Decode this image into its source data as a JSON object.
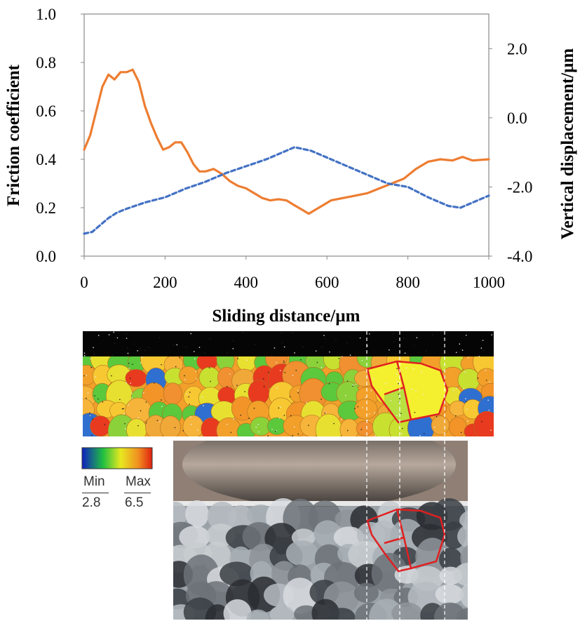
{
  "chart_data": {
    "type": "line",
    "xlabel": "Sliding distance/µm",
    "ylabel": "Friction coefficient",
    "y2label": "Vertical displacement/µm",
    "xlim": [
      0,
      1000
    ],
    "ylim": [
      0,
      1.0
    ],
    "y2lim": [
      -4.0,
      3.0
    ],
    "x_ticks": [
      "0",
      "200",
      "400",
      "600",
      "800",
      "1000"
    ],
    "y_ticks": [
      "0.0",
      "0.2",
      "0.4",
      "0.6",
      "0.8",
      "1.0"
    ],
    "y2_ticks": [
      "-4.0",
      "-2.0",
      "0.0",
      "2.0"
    ],
    "grid": false,
    "series": [
      {
        "axis": "left",
        "style": "solid",
        "color": "#ed7d31",
        "x": [
          0,
          15,
          30,
          45,
          60,
          75,
          90,
          105,
          120,
          135,
          150,
          165,
          180,
          195,
          210,
          225,
          240,
          255,
          270,
          285,
          300,
          320,
          340,
          360,
          380,
          400,
          420,
          440,
          460,
          480,
          500,
          520,
          540,
          555,
          570,
          590,
          610,
          640,
          670,
          700,
          730,
          760,
          790,
          820,
          850,
          880,
          910,
          935,
          960,
          1000
        ],
        "values": [
          0.44,
          0.5,
          0.6,
          0.7,
          0.75,
          0.73,
          0.76,
          0.76,
          0.77,
          0.72,
          0.62,
          0.55,
          0.49,
          0.44,
          0.45,
          0.47,
          0.47,
          0.43,
          0.38,
          0.35,
          0.35,
          0.36,
          0.34,
          0.31,
          0.29,
          0.28,
          0.26,
          0.24,
          0.23,
          0.235,
          0.23,
          0.21,
          0.19,
          0.175,
          0.19,
          0.21,
          0.23,
          0.24,
          0.25,
          0.26,
          0.28,
          0.3,
          0.32,
          0.36,
          0.39,
          0.4,
          0.395,
          0.41,
          0.395,
          0.4
        ]
      },
      {
        "axis": "right",
        "style": "dashed",
        "color": "#4472c4",
        "x": [
          0,
          20,
          40,
          60,
          80,
          100,
          150,
          200,
          250,
          300,
          350,
          400,
          450,
          500,
          520,
          540,
          560,
          600,
          650,
          700,
          750,
          800,
          850,
          900,
          930,
          950,
          980,
          1000
        ],
        "values": [
          -3.35,
          -3.3,
          -3.1,
          -2.9,
          -2.75,
          -2.65,
          -2.45,
          -2.3,
          -2.05,
          -1.85,
          -1.6,
          -1.4,
          -1.2,
          -0.95,
          -0.85,
          -0.9,
          -0.95,
          -1.15,
          -1.4,
          -1.65,
          -1.9,
          -2.0,
          -2.3,
          -2.55,
          -2.6,
          -2.5,
          -2.35,
          -2.25
        ]
      }
    ]
  },
  "colorbar": {
    "min_label": "Min",
    "max_label": "Max",
    "min_value": "2.8",
    "max_value": "6.5"
  },
  "colors": {
    "friction": "#ed7d31",
    "displacement": "#4472c4",
    "grain_outline": "#e02020"
  }
}
